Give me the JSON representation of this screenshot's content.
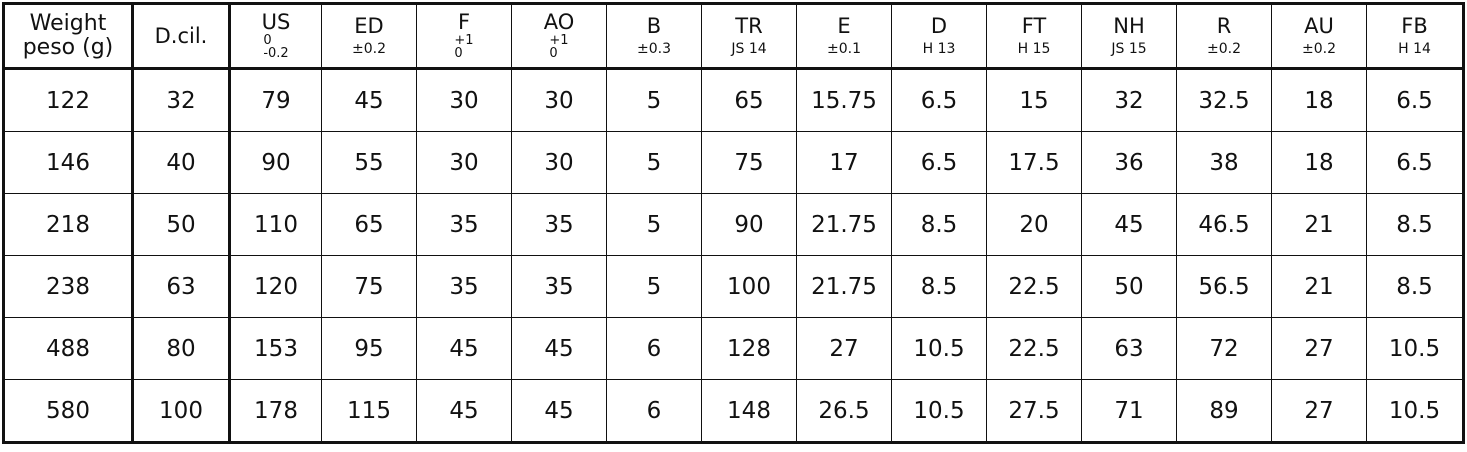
{
  "table": {
    "columns": [
      {
        "name": "Weight",
        "sub": "peso (g)"
      },
      {
        "name": "D.cil."
      },
      {
        "name": "US",
        "upper": "0",
        "lower": "-0.2"
      },
      {
        "name": "ED",
        "tol": "±0.2"
      },
      {
        "name": "F",
        "upper": "+1",
        "lower": "0"
      },
      {
        "name": "AO",
        "upper": "+1",
        "lower": "0"
      },
      {
        "name": "B",
        "tol": "±0.3"
      },
      {
        "name": "TR",
        "tol": "JS 14"
      },
      {
        "name": "E",
        "tol": "±0.1"
      },
      {
        "name": "D",
        "tol": "H 13"
      },
      {
        "name": "FT",
        "tol": "H 15"
      },
      {
        "name": "NH",
        "tol": "JS 15"
      },
      {
        "name": "R",
        "tol": "±0.2"
      },
      {
        "name": "AU",
        "tol": "±0.2"
      },
      {
        "name": "FB",
        "tol": "H 14"
      }
    ],
    "rows": [
      [
        122,
        32,
        79,
        45,
        30,
        30,
        5,
        65,
        15.75,
        6.5,
        15,
        32,
        32.5,
        18,
        6.5
      ],
      [
        146,
        40,
        90,
        55,
        30,
        30,
        5,
        75,
        17,
        6.5,
        17.5,
        36,
        38,
        18,
        6.5
      ],
      [
        218,
        50,
        110,
        65,
        35,
        35,
        5,
        90,
        21.75,
        8.5,
        20,
        45,
        46.5,
        21,
        8.5
      ],
      [
        238,
        63,
        120,
        75,
        35,
        35,
        5,
        100,
        21.75,
        8.5,
        22.5,
        50,
        56.5,
        21,
        8.5
      ],
      [
        488,
        80,
        153,
        95,
        45,
        45,
        6,
        128,
        27,
        10.5,
        22.5,
        63,
        72,
        27,
        10.5
      ],
      [
        580,
        100,
        178,
        115,
        45,
        45,
        6,
        148,
        26.5,
        10.5,
        27.5,
        71,
        89,
        27,
        10.5
      ]
    ]
  }
}
